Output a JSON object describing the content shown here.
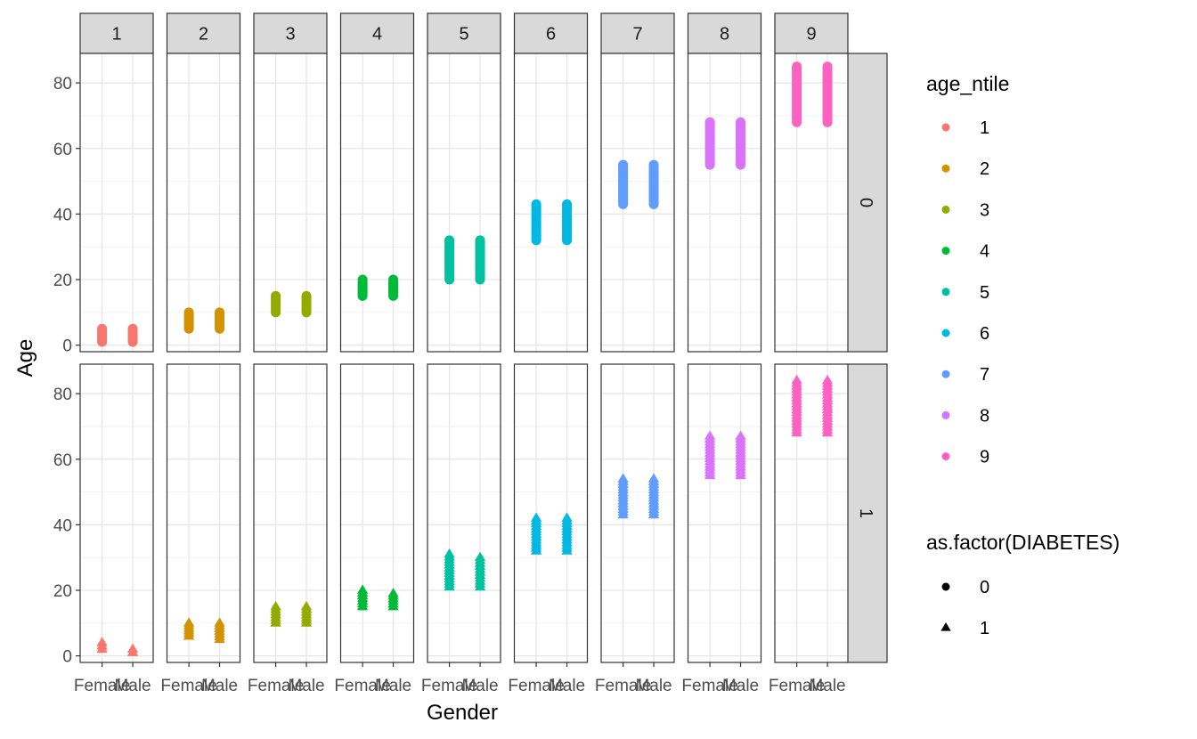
{
  "chart_data": {
    "type": "scatter",
    "title": "",
    "xlabel": "Gender",
    "ylabel": "Age",
    "x_categories": [
      "Female",
      "Male"
    ],
    "ylim": [
      -2,
      89
    ],
    "y_ticks": [
      0,
      20,
      40,
      60,
      80
    ],
    "grid": true,
    "facet_columns": [
      "1",
      "2",
      "3",
      "4",
      "5",
      "6",
      "7",
      "8",
      "9"
    ],
    "facet_rows": [
      "0",
      "1"
    ],
    "ranges": {
      "0": {
        "1": {
          "Female": [
            1,
            5
          ],
          "Male": [
            1,
            5
          ]
        },
        "2": {
          "Female": [
            5,
            10
          ],
          "Male": [
            5,
            10
          ]
        },
        "3": {
          "Female": [
            10,
            15
          ],
          "Male": [
            10,
            15
          ]
        },
        "4": {
          "Female": [
            15,
            20
          ],
          "Male": [
            15,
            20
          ]
        },
        "5": {
          "Female": [
            20,
            32
          ],
          "Male": [
            20,
            32
          ]
        },
        "6": {
          "Female": [
            32,
            43
          ],
          "Male": [
            32,
            43
          ]
        },
        "7": {
          "Female": [
            43,
            55
          ],
          "Male": [
            43,
            55
          ]
        },
        "8": {
          "Female": [
            55,
            68
          ],
          "Male": [
            55,
            68
          ]
        },
        "9": {
          "Female": [
            68,
            85
          ],
          "Male": [
            68,
            85
          ]
        }
      },
      "1": {
        "1": {
          "Female": [
            2,
            4
          ],
          "Male": [
            1,
            2
          ]
        },
        "2": {
          "Female": [
            6,
            10
          ],
          "Male": [
            5,
            10
          ]
        },
        "3": {
          "Female": [
            10,
            15
          ],
          "Male": [
            10,
            15
          ]
        },
        "4": {
          "Female": [
            15,
            20
          ],
          "Male": [
            15,
            19
          ]
        },
        "5": {
          "Female": [
            21,
            31
          ],
          "Male": [
            21,
            30
          ]
        },
        "6": {
          "Female": [
            32,
            42
          ],
          "Male": [
            32,
            42
          ]
        },
        "7": {
          "Female": [
            43,
            54
          ],
          "Male": [
            43,
            54
          ]
        },
        "8": {
          "Female": [
            55,
            67
          ],
          "Male": [
            55,
            67
          ]
        },
        "9": {
          "Female": [
            68,
            84
          ],
          "Male": [
            68,
            84
          ]
        }
      }
    },
    "legend": {
      "placement": "right",
      "color": {
        "title": "age_ntile",
        "entries": [
          {
            "label": "1",
            "color": "#F8766D"
          },
          {
            "label": "2",
            "color": "#D39200"
          },
          {
            "label": "3",
            "color": "#93AA00"
          },
          {
            "label": "4",
            "color": "#00BA38"
          },
          {
            "label": "5",
            "color": "#00C19F"
          },
          {
            "label": "6",
            "color": "#00B9E3"
          },
          {
            "label": "7",
            "color": "#619CFF"
          },
          {
            "label": "8",
            "color": "#DB72FB"
          },
          {
            "label": "9",
            "color": "#FF61C3"
          }
        ]
      },
      "shape": {
        "title": "as.factor(DIABETES)",
        "entries": [
          {
            "label": "0",
            "shape": "circle"
          },
          {
            "label": "1",
            "shape": "triangle"
          }
        ]
      }
    }
  }
}
